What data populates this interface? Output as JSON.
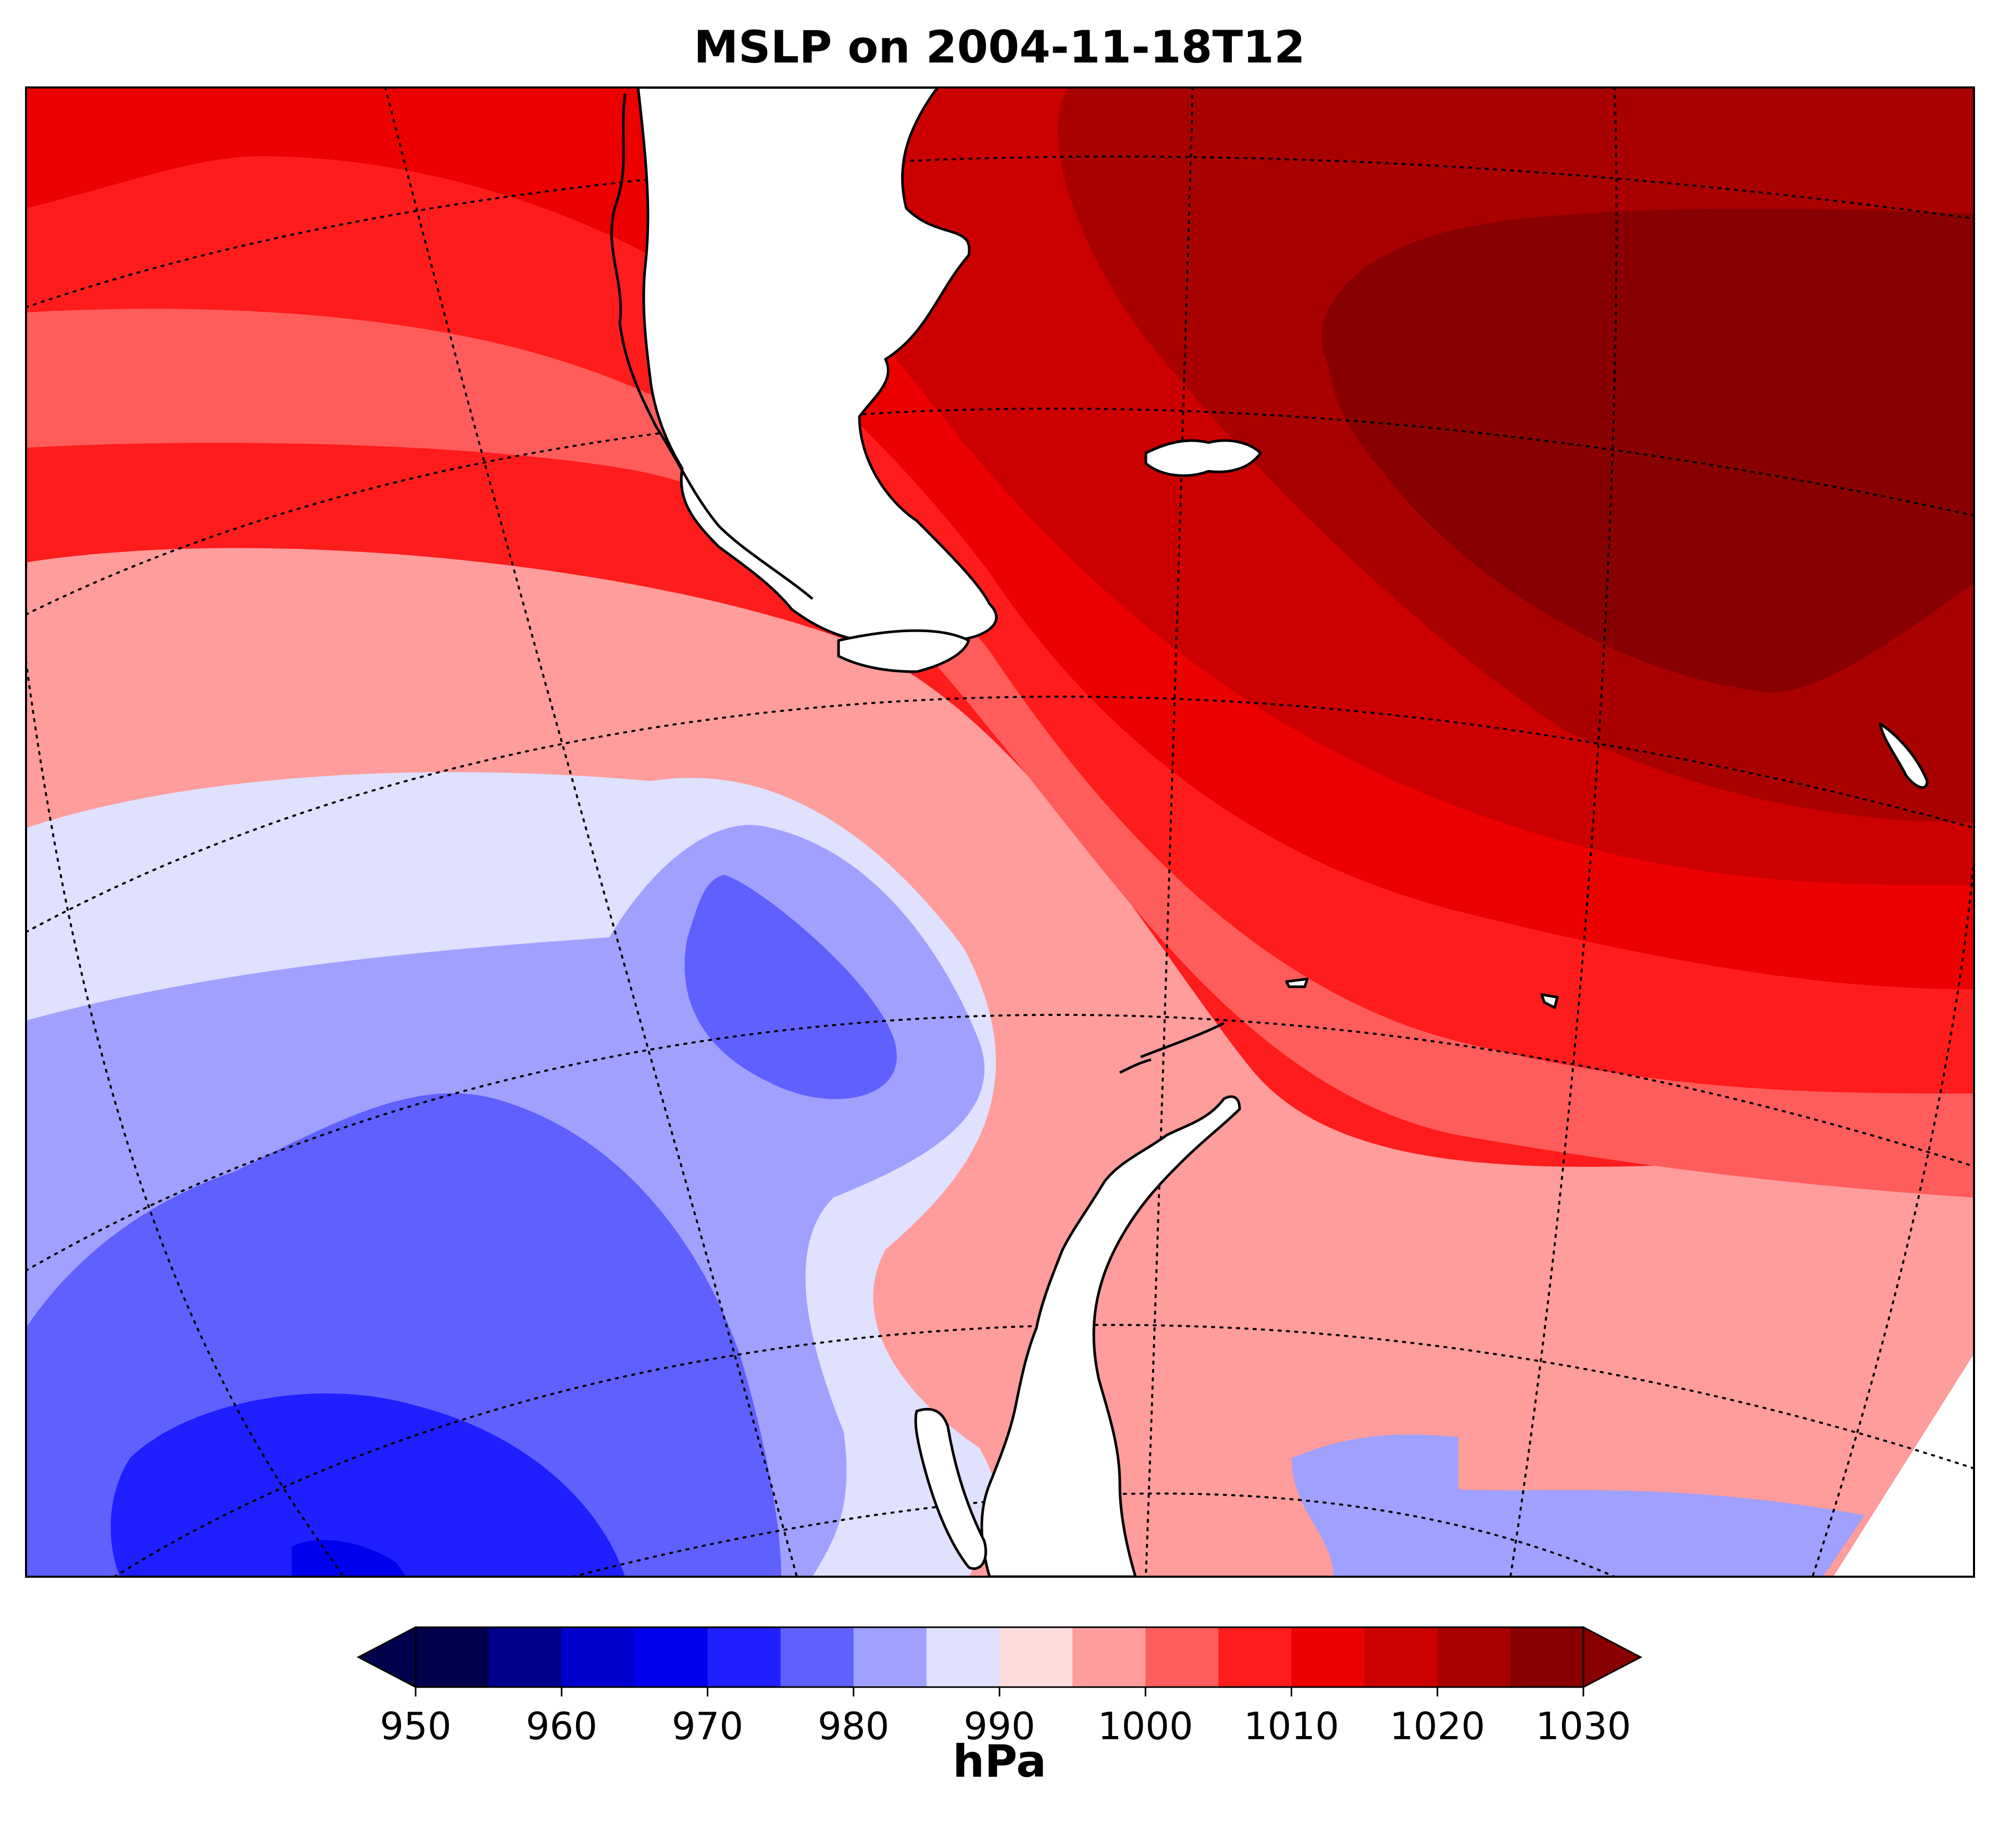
{
  "title": "MSLP on 2004-11-18T12",
  "colorbar": {
    "label": "hPa",
    "levels": [
      950,
      955,
      960,
      965,
      970,
      975,
      980,
      985,
      990,
      995,
      1000,
      1005,
      1010,
      1015,
      1020,
      1025,
      1030
    ],
    "tick_labels": [
      "950",
      "960",
      "970",
      "980",
      "990",
      "1000",
      "1010",
      "1020",
      "1030"
    ],
    "colors": [
      "#00004c",
      "#00008d",
      "#0000cf",
      "#0000ee",
      "#1f1fff",
      "#6060ff",
      "#a0a0ff",
      "#e0e0ff",
      "#ffdcdc",
      "#ff9c9c",
      "#ff5c5c",
      "#ff1c1c",
      "#ec0000",
      "#cc0000",
      "#a90000",
      "#880000"
    ],
    "under_color": "#00004c",
    "over_color": "#880000",
    "extend": "both"
  },
  "map": {
    "field": "Mean sea level pressure",
    "region": "Drake Passage, southern South America and the Antarctic Peninsula",
    "graticule": "dotted",
    "coastlines": true
  }
}
